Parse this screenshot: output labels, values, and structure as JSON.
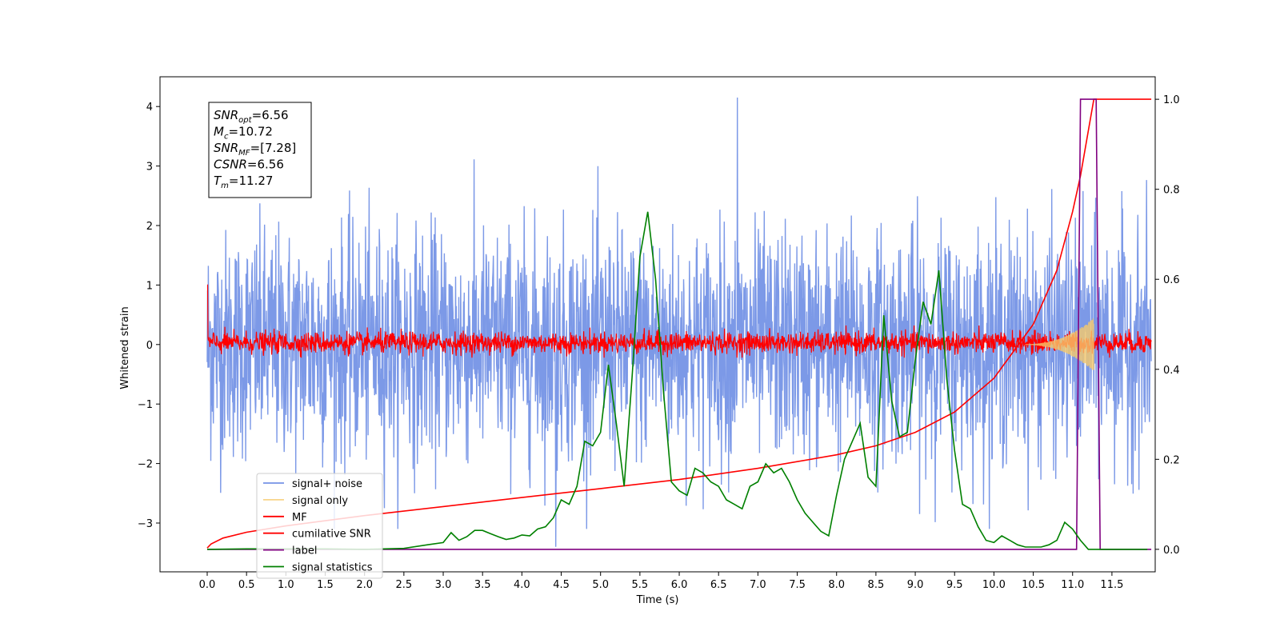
{
  "chart_data": {
    "type": "line",
    "xlabel": "Time (s)",
    "ylabel": "Whitened strain",
    "ylabel_right": "",
    "xlim": [
      -0.6,
      12.05
    ],
    "ylim": [
      -3.82,
      4.5
    ],
    "ylim_right": [
      -0.05,
      1.05
    ],
    "x_ticks": [
      0.0,
      0.5,
      1.0,
      1.5,
      2.0,
      2.5,
      3.0,
      3.5,
      4.0,
      4.5,
      5.0,
      5.5,
      6.0,
      6.5,
      7.0,
      7.5,
      8.0,
      8.5,
      9.0,
      9.5,
      10.0,
      10.5,
      11.0,
      11.5
    ],
    "x_tick_labels": [
      "0.0",
      "0.5",
      "1.0",
      "1.5",
      "2.0",
      "2.5",
      "3.0",
      "3.5",
      "4.0",
      "4.5",
      "5.0",
      "5.5",
      "6.0",
      "6.5",
      "7.0",
      "7.5",
      "8.0",
      "8.5",
      "9.0",
      "9.5",
      "10.0",
      "10.5",
      "11.0",
      "11.5"
    ],
    "y_ticks": [
      -3,
      -2,
      -1,
      0,
      1,
      2,
      3,
      4
    ],
    "y_tick_labels": [
      "−3",
      "−2",
      "−1",
      "0",
      "1",
      "2",
      "3",
      "4"
    ],
    "y_right_ticks": [
      0.0,
      0.2,
      0.4,
      0.6,
      0.8,
      1.0
    ],
    "y_right_tick_labels": [
      "0.0",
      "0.2",
      "0.4",
      "0.6",
      "0.8",
      "1.0"
    ],
    "grid": false,
    "legend_position": "lower-left",
    "annotation": {
      "lines": [
        {
          "sym": "SNR",
          "sub": "opt",
          "value": "=6.56"
        },
        {
          "sym": "M",
          "sub": "c",
          "value": "=10.72"
        },
        {
          "sym": "SNR",
          "sub": "MF",
          "value": "=[7.28]"
        },
        {
          "sym": "CSNR",
          "sub": "",
          "value": "=6.56"
        },
        {
          "sym": "T",
          "sub": "m",
          "value": "=11.27"
        }
      ]
    },
    "series": [
      {
        "name": "signal+ noise",
        "color": "#7593e6",
        "axis": "left",
        "style": "noise",
        "x_range": [
          0.0,
          12.0
        ],
        "envelope": [
          -3.1,
          3.3
        ],
        "extremes": {
          "max": 4.15,
          "min": -3.4
        }
      },
      {
        "name": "signal only",
        "color": "#f6c96b",
        "axis": "left",
        "style": "chirp",
        "x_range": [
          10.4,
          11.27
        ],
        "peak_amplitude": 0.45
      },
      {
        "name": "MF",
        "color": "#ff0000",
        "axis": "left",
        "style": "noise",
        "x_range": [
          0.0,
          12.0
        ],
        "envelope": [
          -0.22,
          0.32
        ],
        "start_value": 1.0
      },
      {
        "name": "cumilative SNR",
        "color": "#ff0000",
        "axis": "right",
        "x": [
          0.0,
          0.05,
          0.2,
          0.5,
          1.0,
          2.0,
          3.0,
          4.0,
          5.0,
          6.0,
          7.0,
          8.0,
          8.5,
          9.0,
          9.5,
          10.0,
          10.5,
          10.8,
          11.0,
          11.1,
          11.2,
          11.27,
          12.0
        ],
        "y": [
          0.003,
          0.012,
          0.025,
          0.038,
          0.052,
          0.075,
          0.095,
          0.115,
          0.135,
          0.155,
          0.18,
          0.21,
          0.23,
          0.26,
          0.305,
          0.38,
          0.5,
          0.62,
          0.75,
          0.83,
          0.93,
          1.0,
          1.0
        ]
      },
      {
        "name": "label",
        "color": "#800080",
        "axis": "right",
        "x": [
          0.0,
          11.05,
          11.1,
          11.3,
          11.35,
          12.0
        ],
        "y": [
          0.0,
          0.0,
          1.0,
          1.0,
          0.0,
          0.0
        ]
      },
      {
        "name": "signal statistics",
        "color": "#008000",
        "axis": "right",
        "x": [
          0.0,
          0.5,
          1.0,
          1.5,
          2.0,
          2.5,
          2.8,
          3.0,
          3.1,
          3.2,
          3.3,
          3.4,
          3.5,
          3.6,
          3.7,
          3.8,
          3.9,
          4.0,
          4.1,
          4.2,
          4.3,
          4.4,
          4.5,
          4.6,
          4.7,
          4.8,
          4.9,
          5.0,
          5.1,
          5.2,
          5.3,
          5.4,
          5.5,
          5.6,
          5.7,
          5.8,
          5.9,
          6.0,
          6.1,
          6.2,
          6.3,
          6.4,
          6.5,
          6.6,
          6.7,
          6.8,
          6.9,
          7.0,
          7.1,
          7.2,
          7.3,
          7.4,
          7.5,
          7.6,
          7.7,
          7.8,
          7.9,
          8.0,
          8.1,
          8.2,
          8.3,
          8.4,
          8.5,
          8.6,
          8.7,
          8.8,
          8.9,
          9.0,
          9.1,
          9.2,
          9.3,
          9.4,
          9.5,
          9.6,
          9.7,
          9.8,
          9.9,
          10.0,
          10.1,
          10.2,
          10.3,
          10.4,
          10.5,
          10.6,
          10.7,
          10.8,
          10.9,
          11.0,
          11.1,
          11.2,
          11.3,
          11.4,
          11.5,
          11.6,
          11.7,
          11.8,
          11.9,
          11.95
        ],
        "y": [
          0.0,
          0.001,
          0.001,
          0.001,
          0.0,
          0.002,
          0.01,
          0.015,
          0.037,
          0.02,
          0.028,
          0.042,
          0.042,
          0.035,
          0.028,
          0.022,
          0.025,
          0.032,
          0.03,
          0.045,
          0.05,
          0.07,
          0.11,
          0.1,
          0.14,
          0.24,
          0.23,
          0.26,
          0.41,
          0.28,
          0.14,
          0.38,
          0.65,
          0.75,
          0.6,
          0.35,
          0.15,
          0.13,
          0.12,
          0.18,
          0.17,
          0.15,
          0.14,
          0.11,
          0.1,
          0.09,
          0.14,
          0.15,
          0.19,
          0.17,
          0.18,
          0.15,
          0.11,
          0.08,
          0.06,
          0.04,
          0.03,
          0.12,
          0.2,
          0.24,
          0.28,
          0.16,
          0.14,
          0.52,
          0.33,
          0.25,
          0.26,
          0.42,
          0.55,
          0.5,
          0.62,
          0.38,
          0.22,
          0.1,
          0.09,
          0.05,
          0.02,
          0.015,
          0.03,
          0.02,
          0.01,
          0.005,
          0.005,
          0.005,
          0.01,
          0.02,
          0.06,
          0.045,
          0.02,
          0.0,
          0.0,
          0.0,
          0.0,
          0.0,
          0.0,
          0.0,
          0.0,
          0.0
        ]
      }
    ]
  }
}
